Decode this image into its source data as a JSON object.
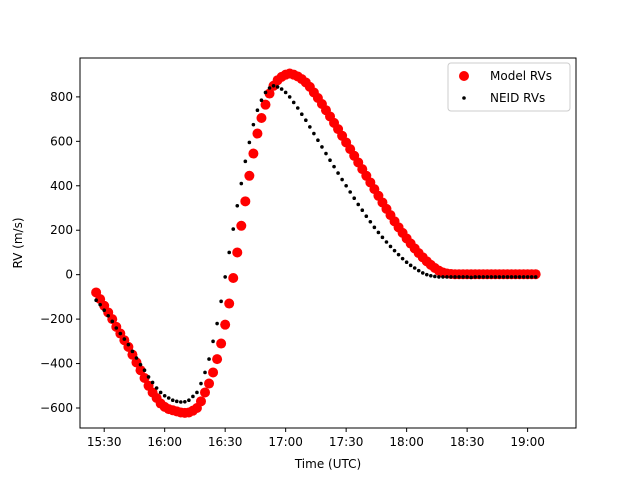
{
  "chart_data": {
    "type": "scatter",
    "title": "",
    "xlabel": "Time (UTC)",
    "ylabel": "RV (m/s)",
    "x_unit": "UTC time (HH:MM)",
    "xlim": [
      "15:18",
      "19:24"
    ],
    "ylim": [
      -690,
      975
    ],
    "grid": false,
    "legend_position": "top-right",
    "x_ticks": [
      "15:30",
      "16:00",
      "16:30",
      "17:00",
      "17:30",
      "18:00",
      "18:30",
      "19:00"
    ],
    "y_ticks": [
      -600,
      -400,
      -200,
      0,
      200,
      400,
      600,
      800
    ],
    "series": [
      {
        "name": "Model RVs",
        "color": "#ff0000",
        "marker": "large-dot",
        "points": [
          [
            "15:26",
            -80
          ],
          [
            "15:28",
            -110
          ],
          [
            "15:30",
            -140
          ],
          [
            "15:32",
            -170
          ],
          [
            "15:34",
            -200
          ],
          [
            "15:36",
            -235
          ],
          [
            "15:38",
            -265
          ],
          [
            "15:40",
            -295
          ],
          [
            "15:42",
            -325
          ],
          [
            "15:44",
            -360
          ],
          [
            "15:46",
            -395
          ],
          [
            "15:48",
            -430
          ],
          [
            "15:50",
            -465
          ],
          [
            "15:52",
            -500
          ],
          [
            "15:54",
            -530
          ],
          [
            "15:56",
            -555
          ],
          [
            "15:58",
            -580
          ],
          [
            "16:00",
            -595
          ],
          [
            "16:02",
            -605
          ],
          [
            "16:04",
            -610
          ],
          [
            "16:06",
            -615
          ],
          [
            "16:08",
            -620
          ],
          [
            "16:10",
            -622
          ],
          [
            "16:12",
            -620
          ],
          [
            "16:14",
            -612
          ],
          [
            "16:16",
            -600
          ],
          [
            "16:18",
            -570
          ],
          [
            "16:20",
            -530
          ],
          [
            "16:22",
            -490
          ],
          [
            "16:24",
            -440
          ],
          [
            "16:26",
            -380
          ],
          [
            "16:28",
            -310
          ],
          [
            "16:30",
            -225
          ],
          [
            "16:32",
            -130
          ],
          [
            "16:34",
            -15
          ],
          [
            "16:36",
            100
          ],
          [
            "16:38",
            220
          ],
          [
            "16:40",
            330
          ],
          [
            "16:42",
            445
          ],
          [
            "16:44",
            545
          ],
          [
            "16:46",
            635
          ],
          [
            "16:48",
            705
          ],
          [
            "16:50",
            765
          ],
          [
            "16:52",
            815
          ],
          [
            "16:54",
            850
          ],
          [
            "16:56",
            875
          ],
          [
            "16:58",
            890
          ],
          [
            "17:00",
            900
          ],
          [
            "17:02",
            905
          ],
          [
            "17:04",
            900
          ],
          [
            "17:06",
            892
          ],
          [
            "17:08",
            880
          ],
          [
            "17:10",
            865
          ],
          [
            "17:12",
            845
          ],
          [
            "17:14",
            820
          ],
          [
            "17:16",
            795
          ],
          [
            "17:18",
            768
          ],
          [
            "17:20",
            740
          ],
          [
            "17:22",
            712
          ],
          [
            "17:24",
            683
          ],
          [
            "17:26",
            655
          ],
          [
            "17:28",
            625
          ],
          [
            "17:30",
            595
          ],
          [
            "17:32",
            565
          ],
          [
            "17:34",
            535
          ],
          [
            "17:36",
            505
          ],
          [
            "17:38",
            475
          ],
          [
            "17:40",
            445
          ],
          [
            "17:42",
            415
          ],
          [
            "17:44",
            385
          ],
          [
            "17:46",
            355
          ],
          [
            "17:48",
            325
          ],
          [
            "17:50",
            296
          ],
          [
            "17:52",
            268
          ],
          [
            "17:54",
            240
          ],
          [
            "17:56",
            213
          ],
          [
            "17:58",
            188
          ],
          [
            "18:00",
            163
          ],
          [
            "18:02",
            140
          ],
          [
            "18:04",
            118
          ],
          [
            "18:06",
            97
          ],
          [
            "18:08",
            78
          ],
          [
            "18:10",
            60
          ],
          [
            "18:12",
            44
          ],
          [
            "18:14",
            30
          ],
          [
            "18:16",
            18
          ],
          [
            "18:18",
            10
          ],
          [
            "18:20",
            5
          ],
          [
            "18:22",
            3
          ],
          [
            "18:24",
            2
          ],
          [
            "18:26",
            2
          ],
          [
            "18:28",
            2
          ],
          [
            "18:30",
            2
          ],
          [
            "18:32",
            2
          ],
          [
            "18:34",
            2
          ],
          [
            "18:36",
            2
          ],
          [
            "18:38",
            2
          ],
          [
            "18:40",
            2
          ],
          [
            "18:42",
            2
          ],
          [
            "18:44",
            2
          ],
          [
            "18:46",
            2
          ],
          [
            "18:48",
            2
          ],
          [
            "18:50",
            2
          ],
          [
            "18:52",
            2
          ],
          [
            "18:54",
            2
          ],
          [
            "18:56",
            2
          ],
          [
            "18:58",
            2
          ],
          [
            "19:00",
            2
          ],
          [
            "19:02",
            2
          ],
          [
            "19:04",
            2
          ]
        ]
      },
      {
        "name": "NEID RVs",
        "color": "#000000",
        "marker": "small-dot",
        "points": [
          [
            "15:26",
            -115
          ],
          [
            "15:28",
            -135
          ],
          [
            "15:30",
            -160
          ],
          [
            "15:32",
            -185
          ],
          [
            "15:34",
            -210
          ],
          [
            "15:36",
            -240
          ],
          [
            "15:38",
            -265
          ],
          [
            "15:40",
            -290
          ],
          [
            "15:42",
            -315
          ],
          [
            "15:44",
            -345
          ],
          [
            "15:46",
            -375
          ],
          [
            "15:48",
            -405
          ],
          [
            "15:50",
            -430
          ],
          [
            "15:52",
            -460
          ],
          [
            "15:54",
            -485
          ],
          [
            "15:56",
            -510
          ],
          [
            "15:58",
            -530
          ],
          [
            "16:00",
            -545
          ],
          [
            "16:02",
            -555
          ],
          [
            "16:04",
            -565
          ],
          [
            "16:06",
            -570
          ],
          [
            "16:08",
            -573
          ],
          [
            "16:10",
            -572
          ],
          [
            "16:12",
            -565
          ],
          [
            "16:14",
            -548
          ],
          [
            "16:16",
            -530
          ],
          [
            "16:18",
            -490
          ],
          [
            "16:20",
            -440
          ],
          [
            "16:22",
            -380
          ],
          [
            "16:24",
            -300
          ],
          [
            "16:26",
            -220
          ],
          [
            "16:28",
            -120
          ],
          [
            "16:30",
            -10
          ],
          [
            "16:32",
            100
          ],
          [
            "16:34",
            205
          ],
          [
            "16:36",
            310
          ],
          [
            "16:38",
            410
          ],
          [
            "16:40",
            510
          ],
          [
            "16:42",
            595
          ],
          [
            "16:44",
            675
          ],
          [
            "16:46",
            740
          ],
          [
            "16:48",
            785
          ],
          [
            "16:50",
            820
          ],
          [
            "16:52",
            840
          ],
          [
            "16:54",
            850
          ],
          [
            "16:56",
            845
          ],
          [
            "16:58",
            835
          ],
          [
            "17:00",
            820
          ],
          [
            "17:02",
            800
          ],
          [
            "17:04",
            775
          ],
          [
            "17:06",
            750
          ],
          [
            "17:08",
            722
          ],
          [
            "17:10",
            695
          ],
          [
            "17:12",
            665
          ],
          [
            "17:14",
            635
          ],
          [
            "17:16",
            605
          ],
          [
            "17:18",
            575
          ],
          [
            "17:20",
            545
          ],
          [
            "17:22",
            515
          ],
          [
            "17:24",
            486
          ],
          [
            "17:26",
            457
          ],
          [
            "17:28",
            428
          ],
          [
            "17:30",
            400
          ],
          [
            "17:32",
            372
          ],
          [
            "17:34",
            344
          ],
          [
            "17:36",
            316
          ],
          [
            "17:38",
            290
          ],
          [
            "17:40",
            263
          ],
          [
            "17:42",
            238
          ],
          [
            "17:44",
            213
          ],
          [
            "17:46",
            190
          ],
          [
            "17:48",
            168
          ],
          [
            "17:50",
            147
          ],
          [
            "17:52",
            127
          ],
          [
            "17:54",
            108
          ],
          [
            "17:56",
            90
          ],
          [
            "17:58",
            72
          ],
          [
            "18:00",
            56
          ],
          [
            "18:02",
            42
          ],
          [
            "18:04",
            30
          ],
          [
            "18:06",
            18
          ],
          [
            "18:08",
            8
          ],
          [
            "18:10",
            0
          ],
          [
            "18:12",
            -5
          ],
          [
            "18:14",
            -8
          ],
          [
            "18:16",
            -10
          ],
          [
            "18:18",
            -10
          ],
          [
            "18:20",
            -10
          ],
          [
            "18:22",
            -10
          ],
          [
            "18:24",
            -10
          ],
          [
            "18:26",
            -10
          ],
          [
            "18:28",
            -10
          ],
          [
            "18:30",
            -10
          ],
          [
            "18:32",
            -12
          ],
          [
            "18:34",
            -10
          ],
          [
            "18:36",
            -10
          ],
          [
            "18:38",
            -10
          ],
          [
            "18:40",
            -10
          ],
          [
            "18:42",
            -10
          ],
          [
            "18:44",
            -10
          ],
          [
            "18:46",
            -10
          ],
          [
            "18:48",
            -10
          ],
          [
            "18:50",
            -10
          ],
          [
            "18:52",
            -10
          ],
          [
            "18:54",
            -10
          ],
          [
            "18:56",
            -10
          ],
          [
            "18:58",
            -10
          ],
          [
            "19:00",
            -10
          ],
          [
            "19:02",
            -10
          ],
          [
            "19:04",
            -10
          ]
        ]
      }
    ]
  }
}
